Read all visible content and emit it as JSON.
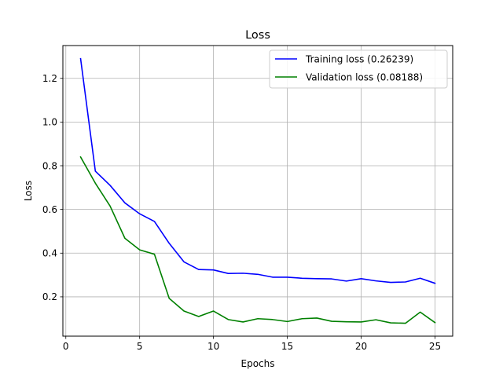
{
  "chart_data": {
    "type": "line",
    "title": "Loss",
    "xlabel": "Epochs",
    "ylabel": "Loss",
    "xlim": [
      -0.2,
      26.2
    ],
    "ylim": [
      0.02,
      1.35
    ],
    "xticks": [
      0,
      5,
      10,
      15,
      20,
      25
    ],
    "yticks": [
      0.2,
      0.4,
      0.6,
      0.8,
      1.0,
      1.2
    ],
    "xtick_labels": [
      "0",
      "5",
      "10",
      "15",
      "20",
      "25"
    ],
    "ytick_labels": [
      "0.2",
      "0.4",
      "0.6",
      "0.8",
      "1.0",
      "1.2"
    ],
    "grid": true,
    "legend_position": "upper right",
    "x": [
      1,
      2,
      3,
      4,
      5,
      6,
      7,
      8,
      9,
      10,
      11,
      12,
      13,
      14,
      15,
      16,
      17,
      18,
      19,
      20,
      21,
      22,
      23,
      24,
      25
    ],
    "series": [
      {
        "name": "Training loss (0.26239)",
        "color": "#0000ff",
        "values": [
          1.29,
          0.775,
          0.71,
          0.63,
          0.58,
          0.545,
          0.445,
          0.36,
          0.325,
          0.323,
          0.307,
          0.308,
          0.303,
          0.29,
          0.29,
          0.285,
          0.283,
          0.282,
          0.272,
          0.283,
          0.273,
          0.266,
          0.268,
          0.285,
          0.262
        ]
      },
      {
        "name": "Validation loss (0.08188)",
        "color": "#008000",
        "values": [
          0.84,
          0.72,
          0.615,
          0.468,
          0.415,
          0.395,
          0.193,
          0.135,
          0.11,
          0.135,
          0.096,
          0.085,
          0.1,
          0.096,
          0.087,
          0.1,
          0.103,
          0.088,
          0.086,
          0.085,
          0.095,
          0.081,
          0.079,
          0.13,
          0.082
        ]
      }
    ]
  }
}
